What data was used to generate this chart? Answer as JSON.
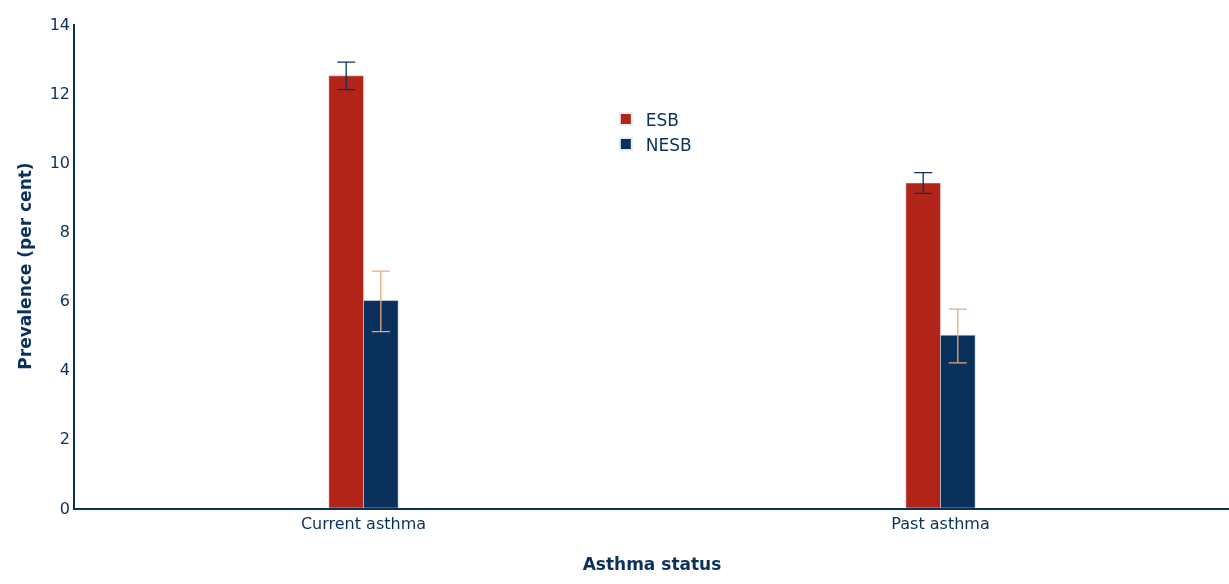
{
  "chart_data": {
    "type": "bar",
    "xlabel": "Asthma status",
    "ylabel": "Prevalence (per cent)",
    "categories": [
      "Current asthma",
      "Past asthma"
    ],
    "series": [
      {
        "name": "ESB",
        "color": "#b22418",
        "values": [
          12.5,
          9.4
        ],
        "errors": [
          [
            12.1,
            12.9
          ],
          [
            9.1,
            9.7
          ]
        ]
      },
      {
        "name": "NESB",
        "color": "#0a315c",
        "values": [
          6.0,
          5.0
        ],
        "errors": [
          [
            5.1,
            6.85
          ],
          [
            4.2,
            5.75
          ]
        ]
      }
    ],
    "ylim": [
      0,
      14
    ],
    "yticks": [
      0,
      2,
      4,
      6,
      8,
      10,
      12,
      14
    ],
    "legend": "top"
  }
}
